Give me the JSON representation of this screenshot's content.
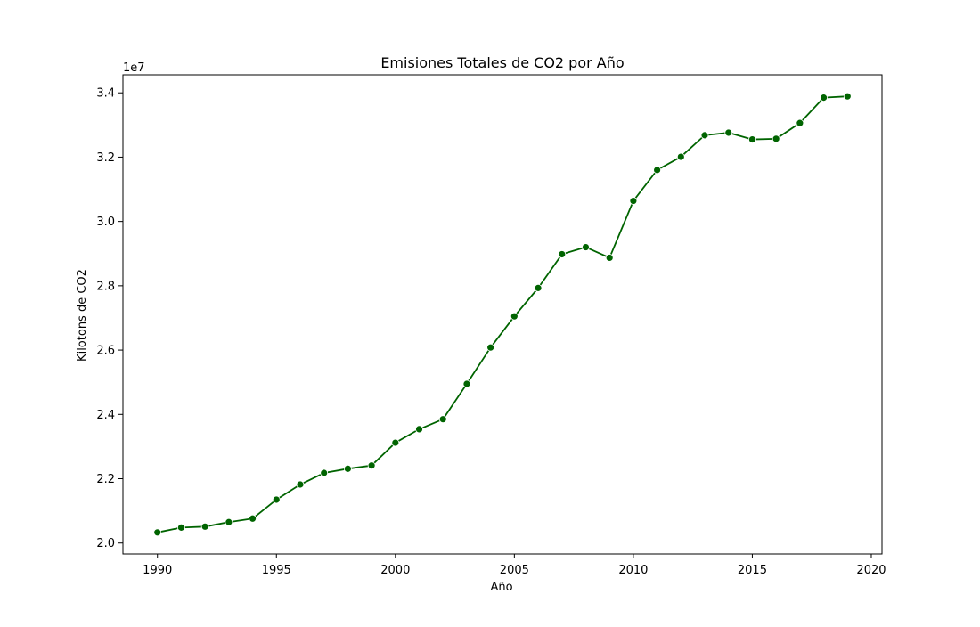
{
  "chart_data": {
    "type": "line",
    "title": "Emisiones Totales de CO2 por Año",
    "xlabel": "Año",
    "ylabel": "Kilotons de CO2",
    "y_scale_label": "1e7",
    "x": [
      1990,
      1991,
      1992,
      1993,
      1994,
      1995,
      1996,
      1997,
      1998,
      1999,
      2000,
      2001,
      2002,
      2003,
      2004,
      2005,
      2006,
      2007,
      2008,
      2009,
      2010,
      2011,
      2012,
      2013,
      2014,
      2015,
      2016,
      2017,
      2018,
      2019
    ],
    "series": [
      {
        "values": [
          20330000,
          20480000,
          20510000,
          20650000,
          20760000,
          21350000,
          21820000,
          22180000,
          22310000,
          22410000,
          23120000,
          23540000,
          23850000,
          24950000,
          26080000,
          27050000,
          27930000,
          28980000,
          29200000,
          28870000,
          30640000,
          31600000,
          32010000,
          32680000,
          32760000,
          32550000,
          32570000,
          33060000,
          33850000,
          33890000
        ],
        "color": "#006400",
        "marker": "circle"
      }
    ],
    "xlim": [
      1988.55,
      2020.45
    ],
    "ylim": [
      19660000,
      34560000
    ],
    "x_ticks": [
      1990,
      1995,
      2000,
      2005,
      2010,
      2015,
      2020
    ],
    "x_tick_labels": [
      "1990",
      "1995",
      "2000",
      "2005",
      "2010",
      "2015",
      "2020"
    ],
    "y_ticks": [
      20000000,
      22000000,
      24000000,
      26000000,
      28000000,
      30000000,
      32000000,
      34000000
    ],
    "y_tick_labels": [
      "2.0",
      "2.2",
      "2.4",
      "2.6",
      "2.8",
      "3.0",
      "3.2",
      "3.4"
    ],
    "grid": false,
    "legend": "none"
  }
}
